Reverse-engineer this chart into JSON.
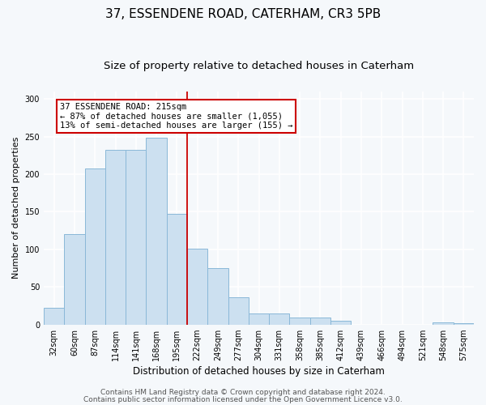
{
  "title1": "37, ESSENDENE ROAD, CATERHAM, CR3 5PB",
  "title2": "Size of property relative to detached houses in Caterham",
  "xlabel": "Distribution of detached houses by size in Caterham",
  "ylabel": "Number of detached properties",
  "categories": [
    "32sqm",
    "60sqm",
    "87sqm",
    "114sqm",
    "141sqm",
    "168sqm",
    "195sqm",
    "222sqm",
    "249sqm",
    "277sqm",
    "304sqm",
    "331sqm",
    "358sqm",
    "385sqm",
    "412sqm",
    "439sqm",
    "466sqm",
    "494sqm",
    "521sqm",
    "548sqm",
    "575sqm"
  ],
  "values": [
    22,
    120,
    208,
    232,
    232,
    248,
    147,
    101,
    75,
    36,
    15,
    15,
    9,
    9,
    5,
    0,
    0,
    0,
    0,
    3,
    2
  ],
  "bar_color": "#cce0f0",
  "bar_edge_color": "#8ab8d8",
  "vline_color": "#cc0000",
  "vline_x": 6.5,
  "annotation_text": "37 ESSENDENE ROAD: 215sqm\n← 87% of detached houses are smaller (1,055)\n13% of semi-detached houses are larger (155) →",
  "annotation_box_facecolor": "#ffffff",
  "annotation_box_edgecolor": "#cc0000",
  "ylim": [
    0,
    310
  ],
  "yticks": [
    0,
    50,
    100,
    150,
    200,
    250,
    300
  ],
  "footer1": "Contains HM Land Registry data © Crown copyright and database right 2024.",
  "footer2": "Contains public sector information licensed under the Open Government Licence v3.0.",
  "bg_color": "#f5f8fb",
  "plot_bg_color": "#f5f8fb",
  "grid_color": "#ffffff",
  "title1_fontsize": 11,
  "title2_fontsize": 9.5,
  "xlabel_fontsize": 8.5,
  "ylabel_fontsize": 8,
  "tick_fontsize": 7,
  "annotation_fontsize": 7.5,
  "footer_fontsize": 6.5
}
